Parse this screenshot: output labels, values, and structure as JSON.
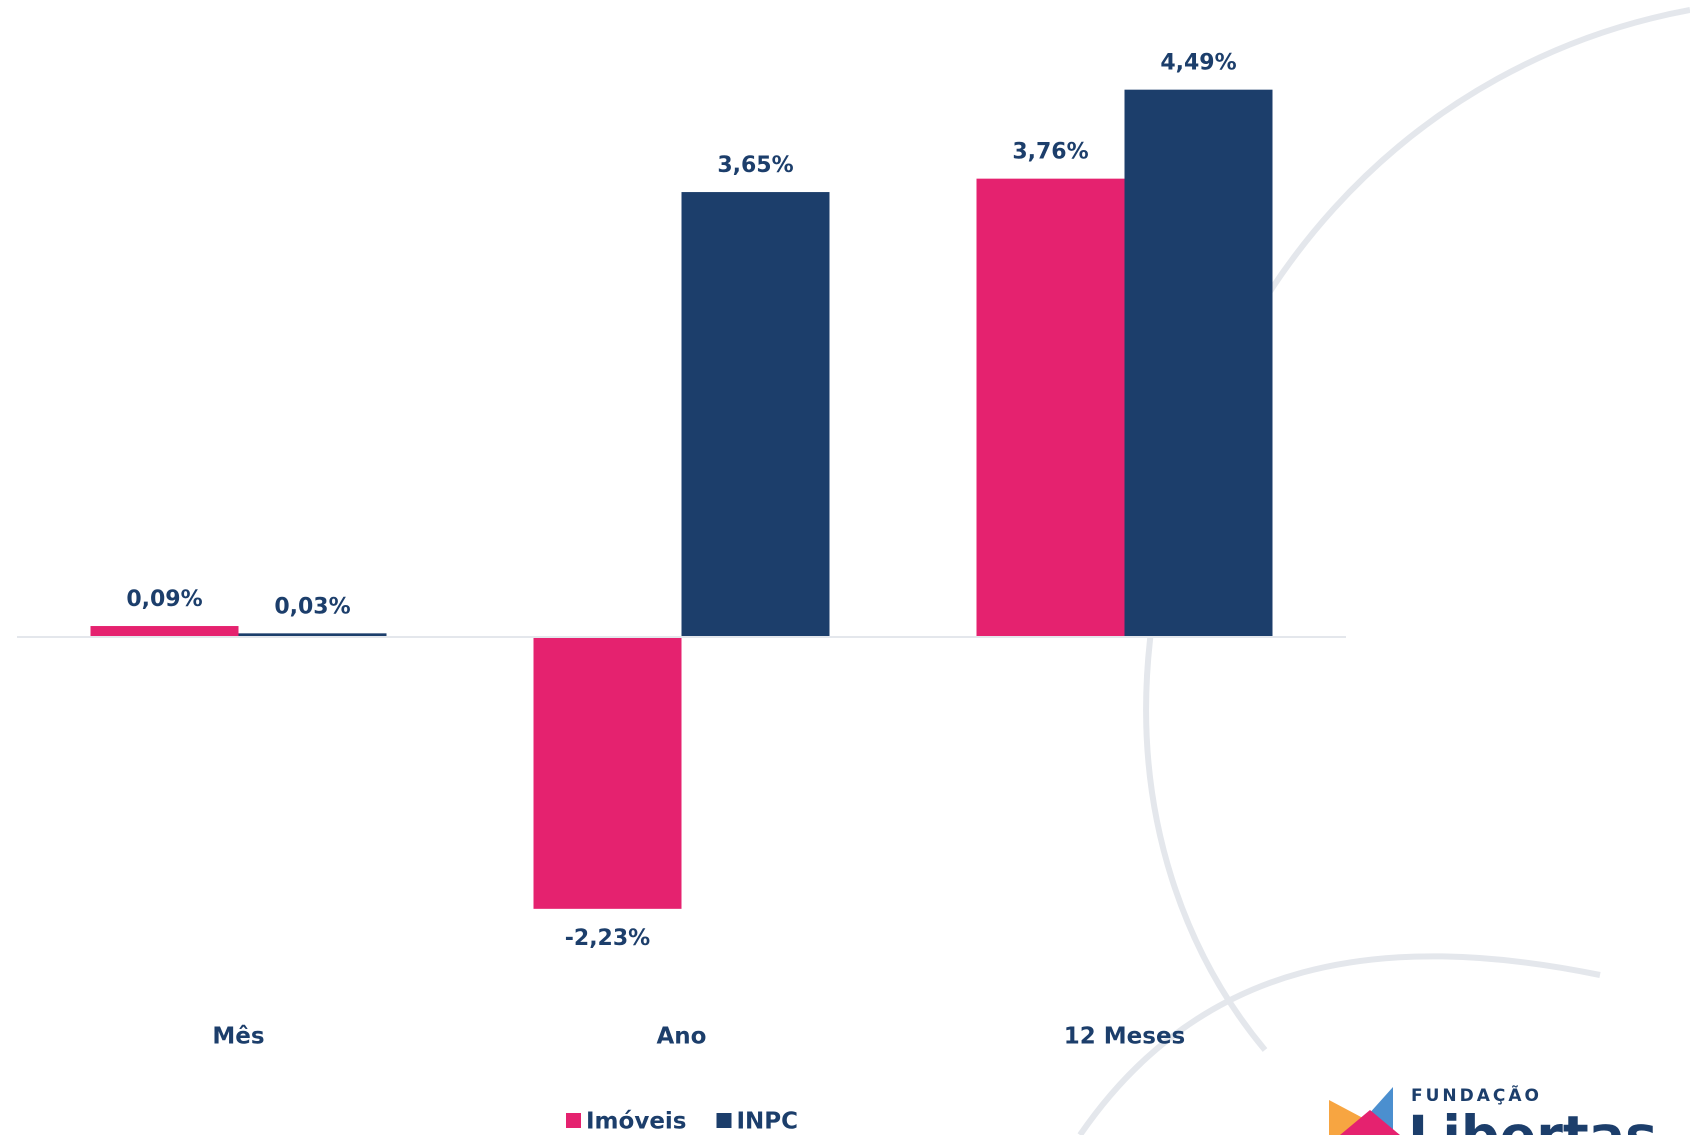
{
  "chart_data": {
    "type": "bar",
    "categories": [
      "Mês",
      "Ano",
      "12 Meses"
    ],
    "series": [
      {
        "name": "Imóveis",
        "color": "#e5226f",
        "values": [
          0.09,
          -2.23,
          3.76
        ],
        "value_labels": [
          "0,09%",
          "-2,23%",
          "3,76%"
        ]
      },
      {
        "name": "INPC",
        "color": "#1c3e6b",
        "values": [
          0.03,
          3.65,
          4.49
        ],
        "value_labels": [
          "0,03%",
          "3,65%",
          "4,49%"
        ]
      }
    ],
    "ylim": [
      -3,
      5
    ]
  },
  "logo": {
    "top": "FUNDAÇÃO",
    "name": "Libertas"
  }
}
